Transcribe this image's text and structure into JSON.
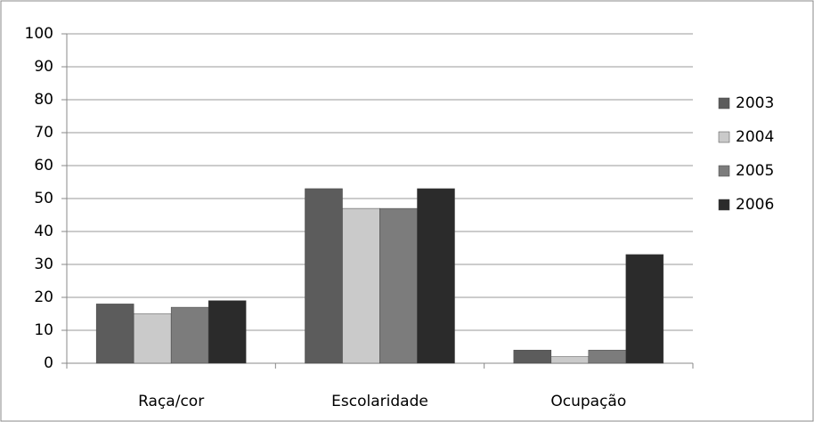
{
  "chart_data": {
    "type": "bar",
    "categories": [
      "Raça/cor",
      "Escolaridade",
      "Ocupação"
    ],
    "series": [
      {
        "name": "2003",
        "color": "#5c5c5c",
        "values": [
          18,
          53,
          4
        ]
      },
      {
        "name": "2004",
        "color": "#cacaca",
        "values": [
          15,
          47,
          2
        ]
      },
      {
        "name": "2005",
        "color": "#7c7c7c",
        "values": [
          17,
          47,
          4
        ]
      },
      {
        "name": "2006",
        "color": "#2b2b2b",
        "values": [
          19,
          53,
          33
        ]
      }
    ],
    "ylim": [
      0,
      100
    ],
    "yticks": [
      0,
      10,
      20,
      30,
      40,
      50,
      60,
      70,
      80,
      90,
      100
    ],
    "grid": true,
    "legend": "right"
  }
}
